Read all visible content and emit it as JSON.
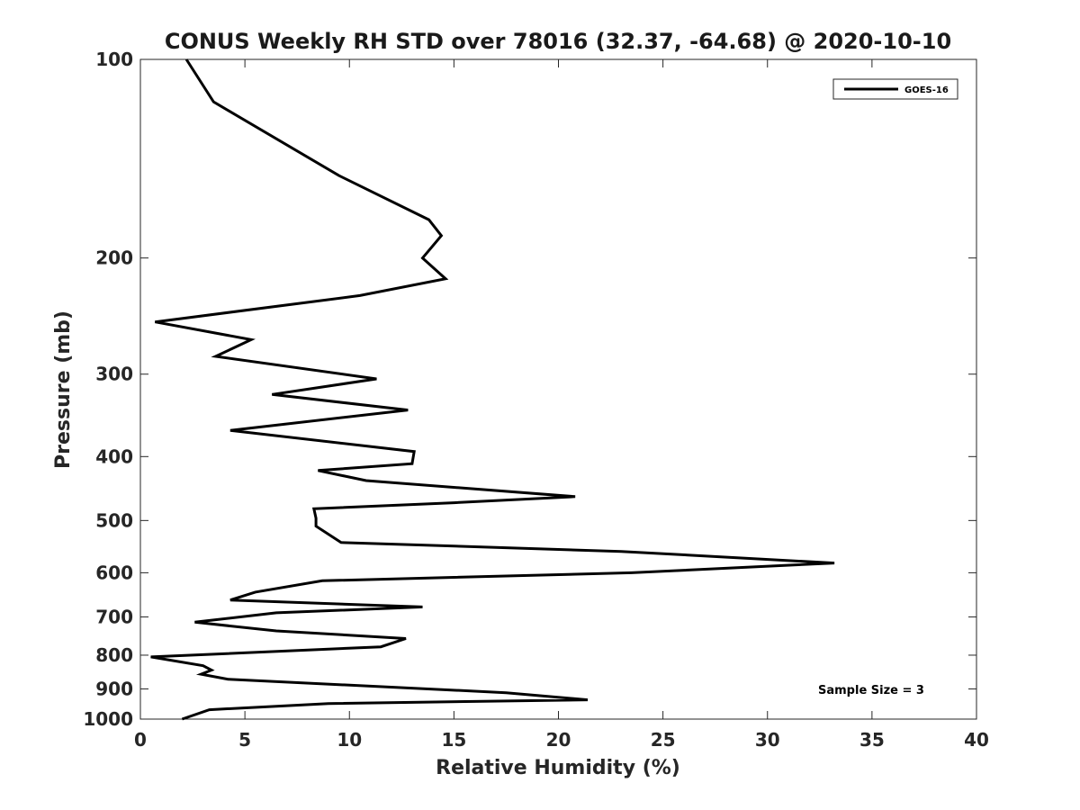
{
  "chart_data": {
    "type": "line",
    "title": "CONUS Weekly RH STD over 78016 (32.37, -64.68) @ 2020-10-10",
    "xlabel": "Relative Humidity (%)",
    "ylabel": "Pressure (mb)",
    "xlim": [
      0,
      40
    ],
    "ylim": [
      100,
      1000
    ],
    "y_scale": "log",
    "y_reversed": true,
    "grid": false,
    "legend_position": "top-right",
    "x_ticks": [
      "0",
      "5",
      "10",
      "15",
      "20",
      "25",
      "30",
      "35",
      "40"
    ],
    "y_ticks": [
      "100",
      "200",
      "300",
      "400",
      "500",
      "600",
      "700",
      "800",
      "900",
      "1000"
    ],
    "series": [
      {
        "name": "GOES-16",
        "color": "#000000",
        "points": [
          [
            2.2,
            100
          ],
          [
            3.5,
            116
          ],
          [
            9.5,
            150
          ],
          [
            13.8,
            175
          ],
          [
            14.4,
            185
          ],
          [
            13.5,
            200
          ],
          [
            14.6,
            215
          ],
          [
            10.5,
            228
          ],
          [
            0.7,
            250
          ],
          [
            5.3,
            266
          ],
          [
            3.6,
            282
          ],
          [
            11.3,
            305
          ],
          [
            6.3,
            322
          ],
          [
            12.8,
            340
          ],
          [
            4.3,
            365
          ],
          [
            13.1,
            393
          ],
          [
            13.0,
            410
          ],
          [
            8.5,
            420
          ],
          [
            10.8,
            435
          ],
          [
            20.8,
            460
          ],
          [
            15.0,
            470
          ],
          [
            8.3,
            480
          ],
          [
            8.4,
            496
          ],
          [
            8.4,
            510
          ],
          [
            9.6,
            540
          ],
          [
            23.0,
            557
          ],
          [
            33.2,
            580
          ],
          [
            23.5,
            600
          ],
          [
            8.7,
            617
          ],
          [
            5.5,
            642
          ],
          [
            4.3,
            660
          ],
          [
            13.5,
            676
          ],
          [
            6.5,
            690
          ],
          [
            2.6,
            713
          ],
          [
            6.5,
            735
          ],
          [
            12.7,
            755
          ],
          [
            11.5,
            777
          ],
          [
            0.5,
            805
          ],
          [
            3.0,
            830
          ],
          [
            3.4,
            843
          ],
          [
            2.9,
            855
          ],
          [
            4.2,
            870
          ],
          [
            17.5,
            912
          ],
          [
            21.4,
            935
          ],
          [
            9.0,
            947
          ],
          [
            3.3,
            968
          ],
          [
            2.0,
            1000
          ]
        ]
      }
    ],
    "annotation": "Sample Size = 3"
  }
}
